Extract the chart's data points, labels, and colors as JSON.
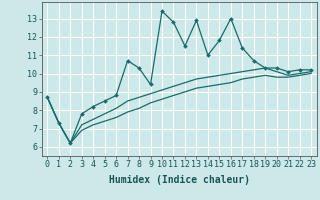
{
  "xlabel": "Humidex (Indice chaleur)",
  "bg_color": "#cce8e8",
  "grid_color": "#ffffff",
  "line_color": "#1a6b6b",
  "xlim": [
    -0.5,
    23.5
  ],
  "ylim": [
    5.5,
    13.9
  ],
  "xticks": [
    0,
    1,
    2,
    3,
    4,
    5,
    6,
    7,
    8,
    9,
    10,
    11,
    12,
    13,
    14,
    15,
    16,
    17,
    18,
    19,
    20,
    21,
    22,
    23
  ],
  "yticks": [
    6,
    7,
    8,
    9,
    10,
    11,
    12,
    13
  ],
  "series1_x": [
    0,
    1,
    2,
    3,
    4,
    5,
    6,
    7,
    8,
    9,
    10,
    11,
    12,
    13,
    14,
    15,
    16,
    17,
    18,
    19,
    20,
    21,
    22,
    23
  ],
  "series1_y": [
    8.7,
    7.3,
    6.2,
    7.8,
    8.2,
    8.5,
    8.8,
    10.7,
    10.3,
    9.4,
    13.4,
    12.8,
    11.5,
    12.9,
    11.0,
    11.8,
    13.0,
    11.4,
    10.7,
    10.3,
    10.3,
    10.1,
    10.2,
    10.2
  ],
  "series2_x": [
    0,
    1,
    2,
    3,
    4,
    5,
    6,
    7,
    8,
    9,
    10,
    11,
    12,
    13,
    14,
    15,
    16,
    17,
    18,
    19,
    20,
    21,
    22,
    23
  ],
  "series2_y": [
    8.7,
    7.3,
    6.2,
    7.2,
    7.5,
    7.8,
    8.1,
    8.5,
    8.7,
    8.9,
    9.1,
    9.3,
    9.5,
    9.7,
    9.8,
    9.9,
    10.0,
    10.1,
    10.2,
    10.3,
    10.1,
    9.9,
    10.0,
    10.1
  ],
  "series3_x": [
    0,
    1,
    2,
    3,
    4,
    5,
    6,
    7,
    8,
    9,
    10,
    11,
    12,
    13,
    14,
    15,
    16,
    17,
    18,
    19,
    20,
    21,
    22,
    23
  ],
  "series3_y": [
    8.7,
    7.3,
    6.2,
    6.9,
    7.2,
    7.4,
    7.6,
    7.9,
    8.1,
    8.4,
    8.6,
    8.8,
    9.0,
    9.2,
    9.3,
    9.4,
    9.5,
    9.7,
    9.8,
    9.9,
    9.8,
    9.8,
    9.9,
    10.0
  ],
  "tick_fontsize": 6,
  "xlabel_fontsize": 7,
  "marker_size": 2.0,
  "linewidth": 0.9
}
